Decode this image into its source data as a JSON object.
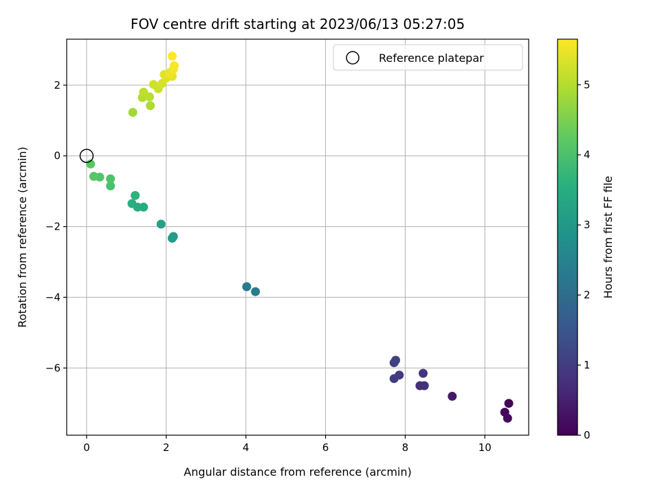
{
  "chart_data": {
    "type": "scatter",
    "title": "FOV centre drift starting at 2023/06/13 05:27:05",
    "xlabel": "Angular distance from reference (arcmin)",
    "ylabel": "Rotation from reference (arcmin)",
    "xlim": [
      -0.5,
      11.1
    ],
    "ylim": [
      -7.9,
      3.3
    ],
    "xticks": [
      0,
      2,
      4,
      6,
      8,
      10
    ],
    "xtick_labels": [
      "0",
      "2",
      "4",
      "6",
      "8",
      "10"
    ],
    "yticks": [
      -6,
      -4,
      -2,
      0,
      2
    ],
    "ytick_labels": [
      "−6",
      "−4",
      "−2",
      "0",
      "2"
    ],
    "grid": true,
    "colormap": "viridis",
    "colorbar": {
      "label": "Hours from first FF file",
      "range": [
        0,
        5.65
      ],
      "ticks": [
        0,
        1,
        2,
        3,
        4,
        5
      ],
      "tick_labels": [
        "0",
        "1",
        "2",
        "3",
        "4",
        "5"
      ]
    },
    "legend": {
      "placement": "top-right",
      "entries": [
        {
          "label": "Reference platepar",
          "marker": "open-circle",
          "color": "#000000"
        }
      ]
    },
    "reference_point": {
      "x": 0,
      "y": 0
    },
    "points": [
      {
        "x": 10.6,
        "y": -7.0,
        "hours": 0.05
      },
      {
        "x": 10.5,
        "y": -7.25,
        "hours": 0.1
      },
      {
        "x": 10.57,
        "y": -7.42,
        "hours": 0.15
      },
      {
        "x": 9.18,
        "y": -6.8,
        "hours": 0.4
      },
      {
        "x": 8.37,
        "y": -6.5,
        "hours": 0.75
      },
      {
        "x": 8.48,
        "y": -6.5,
        "hours": 0.8
      },
      {
        "x": 8.45,
        "y": -6.15,
        "hours": 0.85
      },
      {
        "x": 7.85,
        "y": -6.2,
        "hours": 0.95
      },
      {
        "x": 7.72,
        "y": -6.3,
        "hours": 1.0
      },
      {
        "x": 7.72,
        "y": -5.85,
        "hours": 1.05
      },
      {
        "x": 7.76,
        "y": -5.78,
        "hours": 1.1
      },
      {
        "x": 4.02,
        "y": -3.7,
        "hours": 2.3
      },
      {
        "x": 4.24,
        "y": -3.84,
        "hours": 2.35
      },
      {
        "x": 2.15,
        "y": -2.33,
        "hours": 3.05
      },
      {
        "x": 2.18,
        "y": -2.28,
        "hours": 3.1
      },
      {
        "x": 1.87,
        "y": -1.93,
        "hours": 3.2
      },
      {
        "x": 1.43,
        "y": -1.45,
        "hours": 3.45
      },
      {
        "x": 1.28,
        "y": -1.45,
        "hours": 3.5
      },
      {
        "x": 1.14,
        "y": -1.35,
        "hours": 3.55
      },
      {
        "x": 1.22,
        "y": -1.12,
        "hours": 3.6
      },
      {
        "x": 0.6,
        "y": -0.85,
        "hours": 4.0
      },
      {
        "x": 0.6,
        "y": -0.65,
        "hours": 4.05
      },
      {
        "x": 0.33,
        "y": -0.6,
        "hours": 4.1
      },
      {
        "x": 0.18,
        "y": -0.58,
        "hours": 4.15
      },
      {
        "x": 0.1,
        "y": -0.23,
        "hours": 4.2
      },
      {
        "x": 1.16,
        "y": 1.23,
        "hours": 4.85
      },
      {
        "x": 1.6,
        "y": 1.42,
        "hours": 4.95
      },
      {
        "x": 1.4,
        "y": 1.65,
        "hours": 5.0
      },
      {
        "x": 1.58,
        "y": 1.67,
        "hours": 5.05
      },
      {
        "x": 1.43,
        "y": 1.8,
        "hours": 5.1
      },
      {
        "x": 1.8,
        "y": 1.9,
        "hours": 5.2
      },
      {
        "x": 1.68,
        "y": 2.02,
        "hours": 5.25
      },
      {
        "x": 1.9,
        "y": 2.05,
        "hours": 5.3
      },
      {
        "x": 2.0,
        "y": 2.2,
        "hours": 5.35
      },
      {
        "x": 1.95,
        "y": 2.3,
        "hours": 5.4
      },
      {
        "x": 2.15,
        "y": 2.25,
        "hours": 5.45
      },
      {
        "x": 2.08,
        "y": 2.35,
        "hours": 5.5
      },
      {
        "x": 2.18,
        "y": 2.45,
        "hours": 5.55
      },
      {
        "x": 2.2,
        "y": 2.55,
        "hours": 5.6
      },
      {
        "x": 2.15,
        "y": 2.82,
        "hours": 5.65
      }
    ]
  }
}
